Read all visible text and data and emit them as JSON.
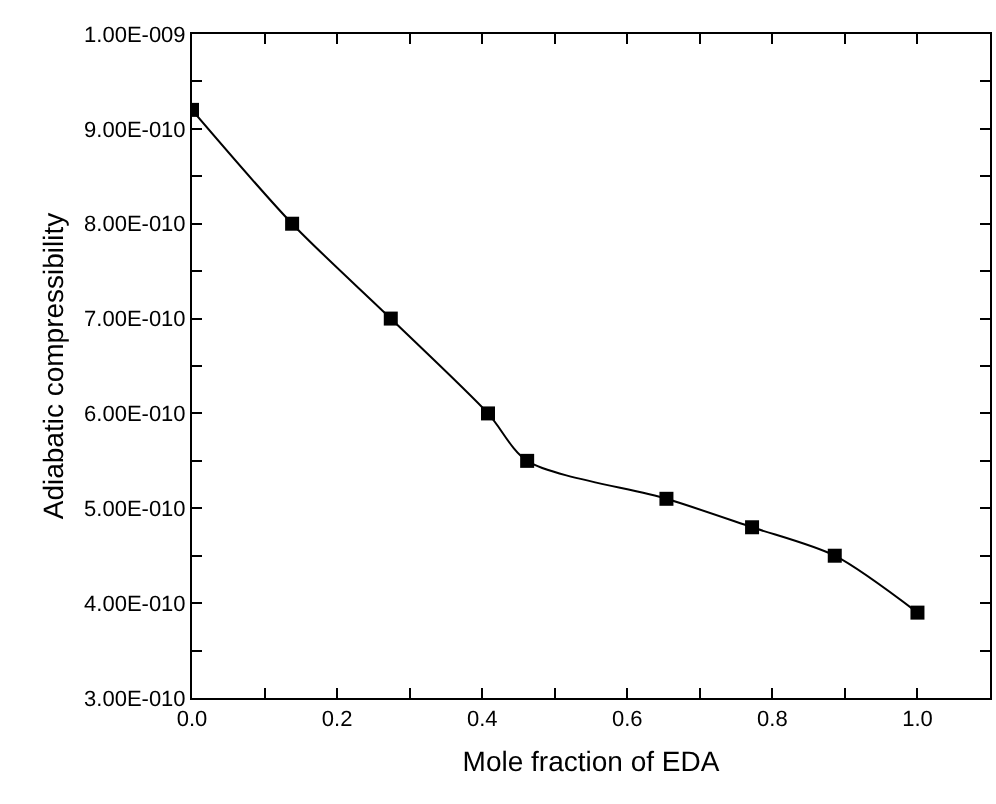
{
  "chart_data": {
    "type": "line",
    "xlabel": "Mole fraction of EDA",
    "ylabel": "Adiabatic compressibility",
    "x": [
      0,
      0.138,
      0.274,
      0.408,
      0.462,
      0.654,
      0.772,
      0.886,
      1.0
    ],
    "series": [
      {
        "color": "#000000",
        "values": [
          9.2e-10,
          8e-10,
          7e-10,
          6e-10,
          5.5e-10,
          5.1e-10,
          4.8e-10,
          4.5e-10,
          3.9e-10
        ]
      }
    ],
    "xlim": [
      0,
      1.1
    ],
    "ylim": [
      3e-10,
      1e-09
    ],
    "xticks": [
      {
        "value": 0,
        "label": "0.0"
      },
      {
        "value": 0.1,
        "label": null
      },
      {
        "value": 0.2,
        "label": "0.2"
      },
      {
        "value": 0.3,
        "label": null
      },
      {
        "value": 0.4,
        "label": "0.4"
      },
      {
        "value": 0.5,
        "label": null
      },
      {
        "value": 0.6,
        "label": "0.6"
      },
      {
        "value": 0.7,
        "label": null
      },
      {
        "value": 0.8,
        "label": "0.8"
      },
      {
        "value": 0.9,
        "label": null
      },
      {
        "value": 1.0,
        "label": "1.0"
      },
      {
        "value": 1.1,
        "label": null
      }
    ],
    "yticks": [
      {
        "value": 3e-10,
        "label": "3.00E-010"
      },
      {
        "value": 3.5e-10,
        "label": null
      },
      {
        "value": 4e-10,
        "label": "4.00E-010"
      },
      {
        "value": 4.5e-10,
        "label": null
      },
      {
        "value": 5e-10,
        "label": "5.00E-010"
      },
      {
        "value": 5.5e-10,
        "label": null
      },
      {
        "value": 6e-10,
        "label": "6.00E-010"
      },
      {
        "value": 6.5e-10,
        "label": null
      },
      {
        "value": 7e-10,
        "label": "7.00E-010"
      },
      {
        "value": 7.5e-10,
        "label": null
      },
      {
        "value": 8e-10,
        "label": "8.00E-010"
      },
      {
        "value": 8.5e-10,
        "label": null
      },
      {
        "value": 9e-10,
        "label": "9.00E-010"
      },
      {
        "value": 9.5e-10,
        "label": null
      },
      {
        "value": 1e-09,
        "label": "1.00E-009"
      }
    ],
    "marker": "square",
    "line_style": "solid"
  }
}
